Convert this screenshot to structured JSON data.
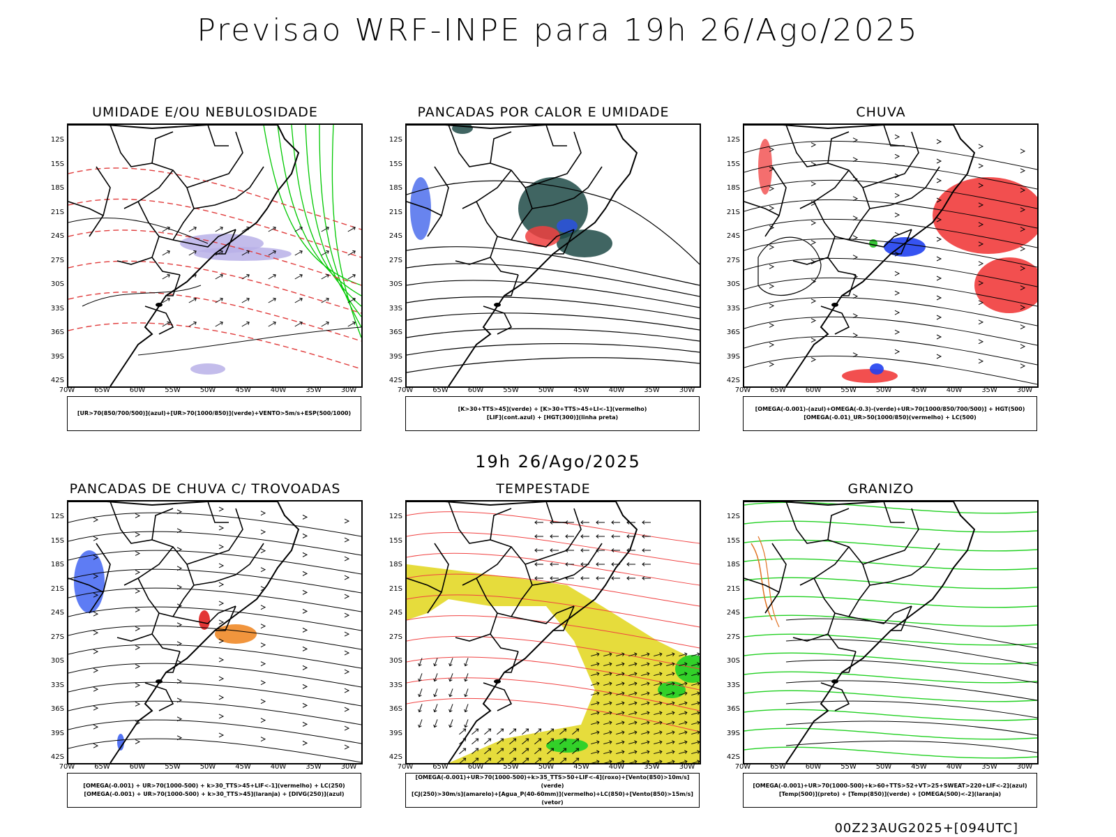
{
  "title": "Previsao WRF-INPE  para 19h 26/Ago/2025",
  "mid_title": "19h 26/Ago/2025",
  "footer": "00Z23AUG2025+[094UTC]",
  "lat_ticks": [
    "12S",
    "15S",
    "18S",
    "21S",
    "24S",
    "27S",
    "30S",
    "33S",
    "36S",
    "39S",
    "42S"
  ],
  "lon_ticks": [
    "70W",
    "65W",
    "60W",
    "55W",
    "50W",
    "45W",
    "40W",
    "35W",
    "30W"
  ],
  "panels": [
    {
      "id": "umidade",
      "title": "UMIDADE E/OU NEBULOSIDADE",
      "legend": [
        "[UR>70(850/700/500)](azul)+[UR>70(1000/850)](verde)+VENTO>5m/s+ESP(500/1000)"
      ],
      "colors": {
        "fill": "#b8b0e8",
        "contour_red": "#e03c3c",
        "contour_green": "#00c800"
      }
    },
    {
      "id": "pancadas-calor",
      "title": "PANCADAS POR CALOR E UMIDADE",
      "legend": [
        "[K>30+TTS>45](verde) + [K>30+TTS>45+LI<-1](vermelho)",
        "[LIF](cont.azul) + [HGT(300)](linha preta)"
      ],
      "colors": {
        "fill": "#1e4a46",
        "hot": "#f04040",
        "blue": "#2850e8"
      }
    },
    {
      "id": "chuva",
      "title": "CHUVA",
      "legend": [
        "[OMEGA(-0.001)-(azul)+OMEGA(-0.3)-(verde)+UR>70(1000/850/700/500)] + HGT(500)",
        "[OMEGA(-0.01)_UR>50(1000/850)(vermelho) + LC(500)"
      ],
      "colors": {
        "red": "#f03030",
        "blue": "#2040f0",
        "green": "#20c020"
      }
    },
    {
      "id": "pancadas-trovoadas",
      "title": "PANCADAS DE CHUVA C/ TROVOADAS",
      "legend": [
        "[OMEGA(-0.001) + UR>70(1000-500) + k>30_TTS>45+LIF<-1](vermelho) + LC(250)",
        "[OMEGA(-0.001) + UR>70(1000-500) + k>30_TTS>45](laranja) + [DIVG(250)](azul)"
      ],
      "colors": {
        "blue": "#2850f0",
        "orange": "#f08a28",
        "red": "#e02020"
      }
    },
    {
      "id": "tempestade",
      "title": "TEMPESTADE",
      "legend": [
        "[OMEGA(-0.001)+UR>70(1000-500)+k>35_TTS>50+LIF<-4](roxo)+[Vento(850)>10m/s](verde)",
        "[CJ(250)>30m/s](amarelo)+[Agua_P(40-60mm)](vermelho)+LC(850)+[Vento(850)>15m/s](vetor)"
      ],
      "colors": {
        "yellow": "#e6dc3c",
        "green": "#28d028",
        "red": "#f04040"
      }
    },
    {
      "id": "granizo",
      "title": "GRANIZO",
      "legend": [
        "[OMEGA(-0.001)+UR>70(1000-500)+k>60+TTS>52+VT>25+SWEAT>220+LIF<-2](azul)",
        "[Temp(500)](preto) + [Temp(850)](verde) + [OMEGA(500)<-2](laranja)"
      ],
      "colors": {
        "green": "#20d020",
        "orange": "#e07020"
      }
    }
  ]
}
